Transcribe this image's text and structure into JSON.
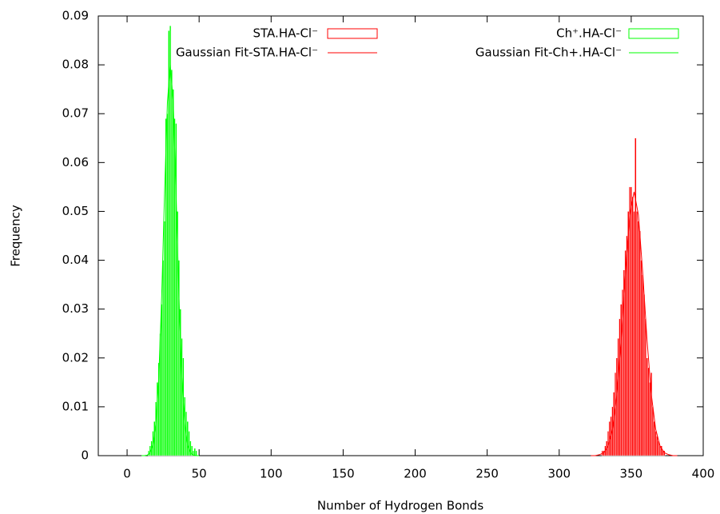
{
  "chart_data": {
    "type": "histogram",
    "x_label": "Number of Hydrogen Bonds",
    "y_label": "Frequency",
    "xlim": [
      -20,
      400
    ],
    "xticks": [
      0,
      50,
      100,
      150,
      200,
      250,
      300,
      350,
      400
    ],
    "ylim": [
      0,
      0.09
    ],
    "yticks": [
      0,
      0.01,
      0.02,
      0.03,
      0.04,
      0.05,
      0.06,
      0.07,
      0.08,
      0.09
    ],
    "legend": "top",
    "series": [
      {
        "name": "STA.HA-Cl⁻",
        "color": "#ff0000",
        "type": "bar",
        "x": [
          330,
          331,
          332,
          333,
          334,
          335,
          336,
          337,
          338,
          339,
          340,
          341,
          342,
          343,
          344,
          345,
          346,
          347,
          348,
          349,
          350,
          351,
          352,
          353,
          354,
          355,
          356,
          357,
          358,
          359,
          360,
          361,
          362,
          363,
          364,
          365,
          366,
          367,
          368,
          369,
          370,
          371,
          372,
          373
        ],
        "values": [
          0.001,
          0.001,
          0.002,
          0.003,
          0.005,
          0.007,
          0.008,
          0.01,
          0.013,
          0.017,
          0.02,
          0.024,
          0.028,
          0.031,
          0.034,
          0.038,
          0.042,
          0.045,
          0.05,
          0.055,
          0.055,
          0.053,
          0.05,
          0.065,
          0.05,
          0.048,
          0.046,
          0.04,
          0.037,
          0.033,
          0.028,
          0.02,
          0.018,
          0.015,
          0.017,
          0.01,
          0.007,
          0.005,
          0.004,
          0.003,
          0.002,
          0.002,
          0.001,
          0.001
        ]
      },
      {
        "name": "Gaussian Fit-STA.HA-Cl⁻",
        "color": "#ff0000",
        "type": "line",
        "x": [
          322,
          325,
          328,
          331,
          334,
          337,
          340,
          343,
          346,
          349,
          352,
          355,
          358,
          361,
          364,
          367,
          370,
          373,
          376,
          379,
          382
        ],
        "values": [
          0,
          0,
          0.0002,
          0.0006,
          0.002,
          0.0054,
          0.0124,
          0.0236,
          0.0374,
          0.0493,
          0.054,
          0.0493,
          0.0374,
          0.0236,
          0.0124,
          0.0054,
          0.002,
          0.0006,
          0.0002,
          0,
          0
        ]
      },
      {
        "name": "Ch⁺.HA-Cl⁻",
        "color": "#00ff00",
        "type": "bar",
        "x": [
          15,
          16,
          17,
          18,
          19,
          20,
          21,
          22,
          23,
          24,
          25,
          26,
          27,
          28,
          29,
          30,
          31,
          32,
          33,
          34,
          35,
          36,
          37,
          38,
          39,
          40,
          41,
          42,
          43,
          44,
          45,
          46,
          47,
          48
        ],
        "values": [
          0.001,
          0.002,
          0.003,
          0.005,
          0.007,
          0.011,
          0.015,
          0.019,
          0.025,
          0.031,
          0.04,
          0.048,
          0.069,
          0.07,
          0.087,
          0.088,
          0.079,
          0.075,
          0.069,
          0.068,
          0.05,
          0.04,
          0.03,
          0.024,
          0.02,
          0.012,
          0.009,
          0.007,
          0.005,
          0.003,
          0.002,
          0.001,
          0.0015,
          0.001
        ]
      },
      {
        "name": "Gaussian Fit-Ch+.HA-Cl⁻",
        "color": "#00ff00",
        "type": "line",
        "x": [
          10,
          12,
          14,
          16,
          18,
          20,
          22,
          24,
          26,
          28,
          30,
          32,
          34,
          36,
          38,
          40,
          42,
          44,
          46,
          48,
          50
        ],
        "values": [
          0,
          0,
          0.0001,
          0.0006,
          0.0022,
          0.0066,
          0.016,
          0.0325,
          0.0536,
          0.0724,
          0.08,
          0.0724,
          0.0536,
          0.0325,
          0.016,
          0.0066,
          0.0022,
          0.0006,
          0.0001,
          0,
          0
        ]
      }
    ]
  }
}
